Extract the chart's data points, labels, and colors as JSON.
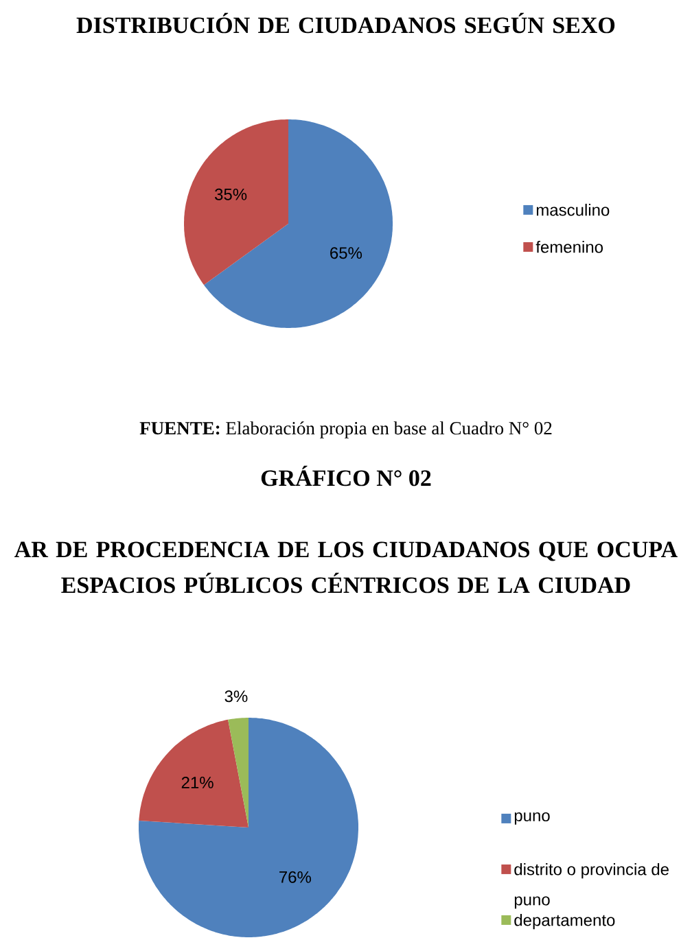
{
  "chart_data": [
    {
      "type": "pie",
      "title": "DISTRIBUCIÓN DE CIUDADANOS SEGÚN SEXO",
      "categories": [
        "masculino",
        "femenino"
      ],
      "values": [
        65,
        35
      ],
      "colors": [
        "#4f81bd",
        "#c0504d"
      ],
      "value_labels": [
        "65%",
        "35%"
      ],
      "legend": "right",
      "annotations": [
        "**FUENTE:** Elaboración propia en base al Cuadro N° 02"
      ]
    },
    {
      "type": "pie",
      "title": "AR DE PROCEDENCIA DE LOS CIUDADANOS QUE OCUPA ESPACIOS PÚBLICOS CÉNTRICOS DE LA CIUDAD",
      "categories": [
        "puno",
        "distrito o provincia de puno",
        "departamento"
      ],
      "values": [
        76,
        21,
        3
      ],
      "colors": [
        "#4f81bd",
        "#c0504d",
        "#9bbb59"
      ],
      "value_labels": [
        "76%",
        "21%",
        "3%"
      ],
      "legend": "right",
      "annotations": [
        "GRÁFICO N° 02"
      ]
    }
  ]
}
